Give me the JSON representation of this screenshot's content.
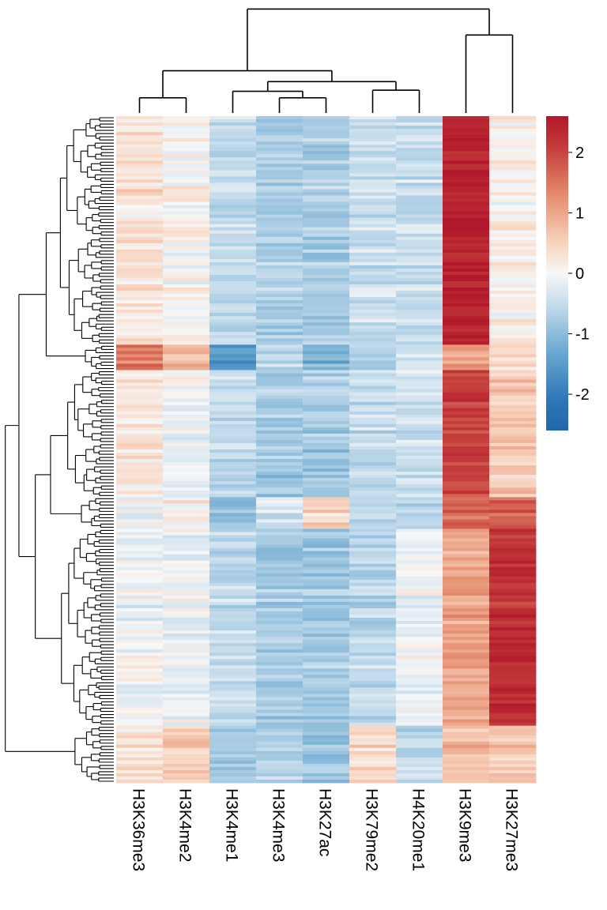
{
  "chart_data": {
    "type": "heatmap",
    "title": "",
    "xlabel": "",
    "ylabel": "",
    "columns": [
      "H3K36me3",
      "H3K4me2",
      "H3K4me1",
      "H3K4me3",
      "H3K27ac",
      "H3K79me2",
      "H4K20me1",
      "H3K9me3",
      "H3K27me3"
    ],
    "column_dendrogram": "((((H3K36me3,H3K4me2),((H3K4me1,(H3K4me3,H3K27ac)),(H3K79me2,H4K20me1))),(H3K9me3,H3K27me3)))",
    "row_dendrogram": true,
    "row_count": 210,
    "color_scale": {
      "type": "diverging",
      "min": -2.6,
      "max": 2.6,
      "ticks": [
        2,
        1,
        0,
        -1,
        -2
      ],
      "tick_labels": [
        "2",
        "1",
        "0",
        "-1",
        "-2"
      ],
      "low_color": "#2166ac",
      "mid_color": "#f7f7f7",
      "high_color": "#b2182b"
    },
    "row_blocks": [
      {
        "rows": 72,
        "means": [
          0.3,
          0.05,
          -0.5,
          -0.7,
          -0.75,
          -0.45,
          -0.45,
          2.45,
          0.1
        ]
      },
      {
        "rows": 8,
        "means": [
          1.4,
          0.8,
          -1.6,
          -0.6,
          -1.2,
          -0.8,
          -0.4,
          1.0,
          0.3
        ]
      },
      {
        "rows": 40,
        "means": [
          0.2,
          -0.1,
          -0.5,
          -0.8,
          -0.8,
          -0.5,
          -0.4,
          2.0,
          0.6
        ]
      },
      {
        "rows": 10,
        "means": [
          0.0,
          0.1,
          -1.0,
          -0.3,
          0.5,
          -0.5,
          -0.7,
          1.7,
          1.6
        ]
      },
      {
        "rows": 62,
        "means": [
          -0.1,
          -0.1,
          -0.5,
          -0.8,
          -0.8,
          -0.6,
          -0.1,
          1.0,
          2.2
        ]
      },
      {
        "rows": 18,
        "means": [
          0.3,
          0.6,
          -0.8,
          -0.6,
          -0.9,
          0.4,
          -0.5,
          0.8,
          0.6
        ]
      }
    ]
  }
}
